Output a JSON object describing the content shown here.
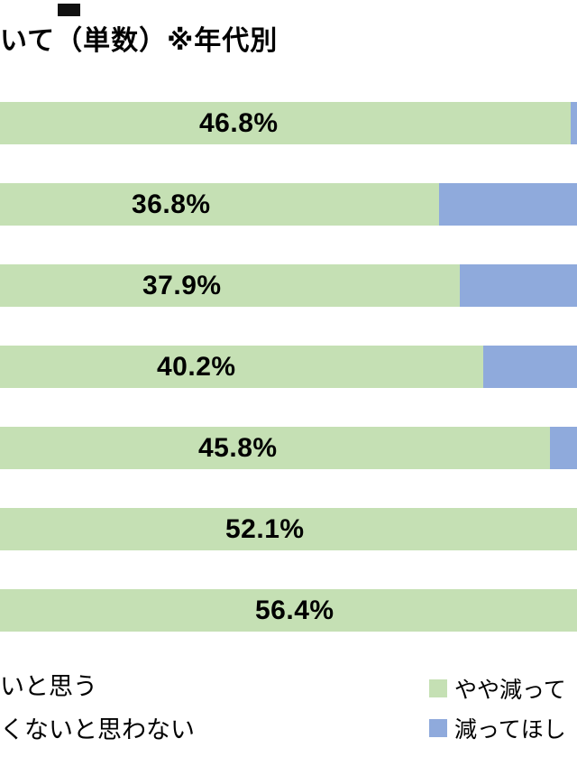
{
  "header": {
    "title": "いて（単数）※年代別"
  },
  "colors": {
    "green": "#c5e0b4",
    "blue": "#8faadc",
    "text": "#000000",
    "background": "#ffffff"
  },
  "chart_data": {
    "type": "bar",
    "orientation": "horizontal",
    "stacked": true,
    "title": "いて（単数）※年代別",
    "value_unit": "%",
    "categories": [
      "",
      "",
      "",
      "",
      "",
      "",
      ""
    ],
    "series": [
      {
        "name": "やや減って",
        "color": "#c5e0b4",
        "values": [
          46.8,
          36.8,
          37.9,
          40.2,
          45.8,
          52.1,
          56.4
        ]
      },
      {
        "name": "減ってほし",
        "color": "#8faadc",
        "values": null
      }
    ],
    "legend_position": "bottom",
    "grid": false
  },
  "rows": [
    {
      "label": "46.8%",
      "green_style": "width:98.9%",
      "label_style": "left:221px"
    },
    {
      "label": "36.8%",
      "green_style": "width:76.1%",
      "label_style": "left:146px"
    },
    {
      "label": "37.9%",
      "green_style": "width:79.7%",
      "label_style": "left:158px"
    },
    {
      "label": "40.2%",
      "green_style": "width:83.8%",
      "label_style": "left:174px"
    },
    {
      "label": "45.8%",
      "green_style": "width:95.3%",
      "label_style": "left:220px"
    },
    {
      "label": "52.1%",
      "green_style": "width:100%",
      "label_style": "left:250px"
    },
    {
      "label": "56.4%",
      "green_style": "width:100%",
      "label_style": "left:283px"
    }
  ],
  "legend": {
    "left_items": [
      {
        "label": "いと思う"
      },
      {
        "label": "くないと思わない"
      }
    ],
    "right_items": [
      {
        "label": "やや減って",
        "color": "#c5e0b4"
      },
      {
        "label": "減ってほし",
        "color": "#8faadc"
      }
    ]
  }
}
